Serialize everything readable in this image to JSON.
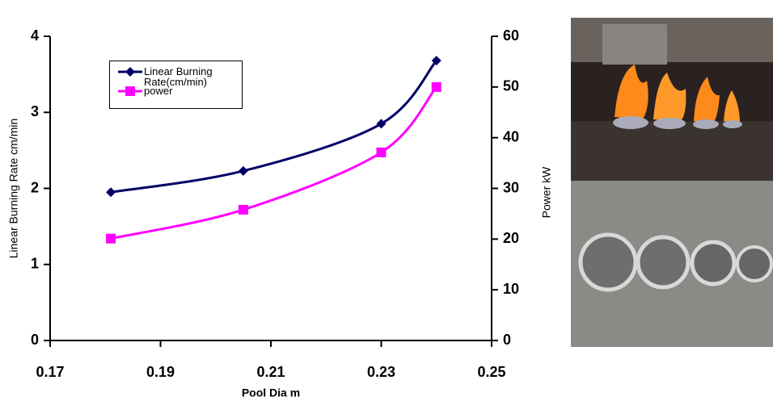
{
  "chart_data": {
    "type": "line",
    "xlabel": "Pool Dia m",
    "ylabel": "Linear Burning Rate cm/min",
    "y2label": "Power kW",
    "x": [
      0.181,
      0.205,
      0.23,
      0.24
    ],
    "series": [
      {
        "name": "Linear Burning Rate(cm/min)",
        "color": "#000066",
        "marker": "diamond",
        "values": [
          1.95,
          2.23,
          2.85,
          3.68
        ]
      },
      {
        "name": "power",
        "color": "#ff00ff",
        "marker": "square",
        "axis": "y2",
        "values": [
          20.1,
          25.8,
          37.1,
          50.0
        ]
      }
    ],
    "xlim": [
      0.17,
      0.25
    ],
    "xticks": [
      0.17,
      0.19,
      0.21,
      0.23,
      0.25
    ],
    "ylim": [
      0,
      4
    ],
    "yticks": [
      0,
      1,
      2,
      3,
      4
    ],
    "y2lim": [
      0,
      60
    ],
    "y2ticks": [
      0,
      10,
      20,
      30,
      40,
      50,
      60
    ]
  }
}
